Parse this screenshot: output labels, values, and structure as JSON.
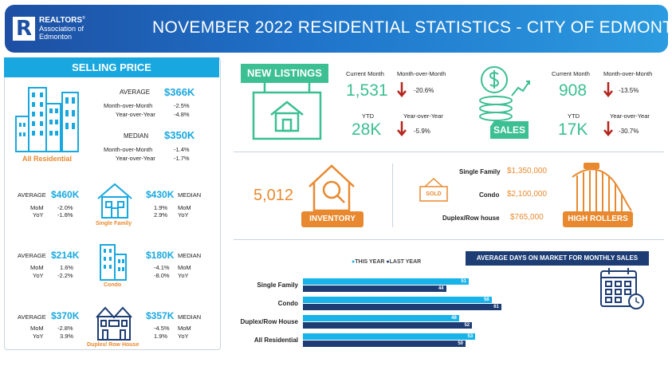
{
  "header": {
    "logo_brand": "REALTORS",
    "logo_line2": "Association of",
    "logo_line3": "Edmonton",
    "logo_mark": "R",
    "title": "NOVEMBER 2022 RESIDENTIAL STATISTICS - CITY OF EDMONTON"
  },
  "selling_price": {
    "banner": "SELLING PRICE",
    "all_residential_label": "All Residential",
    "average_label": "AVERAGE",
    "average_value": "$366K",
    "average_mom_label": "Month-over-Month",
    "average_mom": "-2.5%",
    "average_yoy_label": "Year-over-Year",
    "average_yoy": "-4.8%",
    "median_label": "MEDIAN",
    "median_value": "$350K",
    "median_mom_label": "Month-over-Month",
    "median_mom": "-1.4%",
    "median_yoy_label": "Year-over-Year",
    "median_yoy": "-1.7%",
    "types": [
      {
        "name": "Single Family",
        "avg_label": "AVERAGE",
        "avg": "$460K",
        "mom_label": "MoM",
        "yoy_label": "YoY",
        "avg_mom": "-2.0%",
        "avg_yoy": "-1.8%",
        "med": "$430K",
        "med_label": "MEDIAN",
        "med_mom": "1.9%",
        "med_yoy": "2.9%"
      },
      {
        "name": "Condo",
        "avg_label": "AVERAGE",
        "avg": "$214K",
        "mom_label": "MoM",
        "yoy_label": "YoY",
        "avg_mom": "1.6%",
        "avg_yoy": "-2.2%",
        "med": "$180K",
        "med_label": "MEDIAN",
        "med_mom": "-4.1%",
        "med_yoy": "-8.0%"
      },
      {
        "name": "Duplex/ Row House",
        "avg_label": "AVERAGE",
        "avg": "$370K",
        "mom_label": "MoM",
        "yoy_label": "YoY",
        "avg_mom": "-2.8%",
        "avg_yoy": "3.9%",
        "med": "$357K",
        "med_label": "MEDIAN",
        "med_mom": "-4.5%",
        "med_yoy": "1.9%"
      }
    ]
  },
  "new_listings": {
    "tag": "NEW  LISTINGS",
    "current_label": "Current Month",
    "current_value": "1,531",
    "mom_label": "Month-over-Month",
    "mom_value": "-20.6%",
    "ytd_label": "YTD",
    "ytd_value": "28K",
    "yoy_label": "Year-over-Year",
    "yoy_value": "-5.9%"
  },
  "sales": {
    "tag": "SALES",
    "current_label": "Current Month",
    "current_value": "908",
    "mom_label": "Month-over-Month",
    "mom_value": "-13.5%",
    "ytd_label": "YTD",
    "ytd_value": "17K",
    "yoy_label": "Year-over-Year",
    "yoy_value": "-30.7%"
  },
  "inventory": {
    "value": "5,012",
    "tag": "INVENTORY"
  },
  "high_rollers": {
    "sign": "SOLD",
    "tag": "HIGH ROLLERS",
    "items": [
      {
        "label": "Single Family",
        "value": "$1,350,000"
      },
      {
        "label": "Condo",
        "value": "$2,100,000"
      },
      {
        "label": "Duplex/Row house",
        "value": "$765,000"
      }
    ]
  },
  "colors": {
    "this_year": "#18b3e8",
    "last_year": "#1d3d74",
    "green": "#3bbf93",
    "orange": "#e8892f",
    "down_arrow": "#b3261e"
  },
  "chart_data": {
    "type": "bar",
    "title": "AVERAGE DAYS ON MARKET FOR MONTHLY SALES",
    "categories": [
      "Single Family",
      "Condo",
      "Duplex/Row House",
      "All Residential"
    ],
    "series": [
      {
        "name": "THIS YEAR",
        "values": [
          51,
          58,
          48,
          53
        ]
      },
      {
        "name": "LAST YEAR",
        "values": [
          44,
          61,
          52,
          50
        ]
      }
    ],
    "orientation": "horizontal",
    "legend": "top"
  }
}
